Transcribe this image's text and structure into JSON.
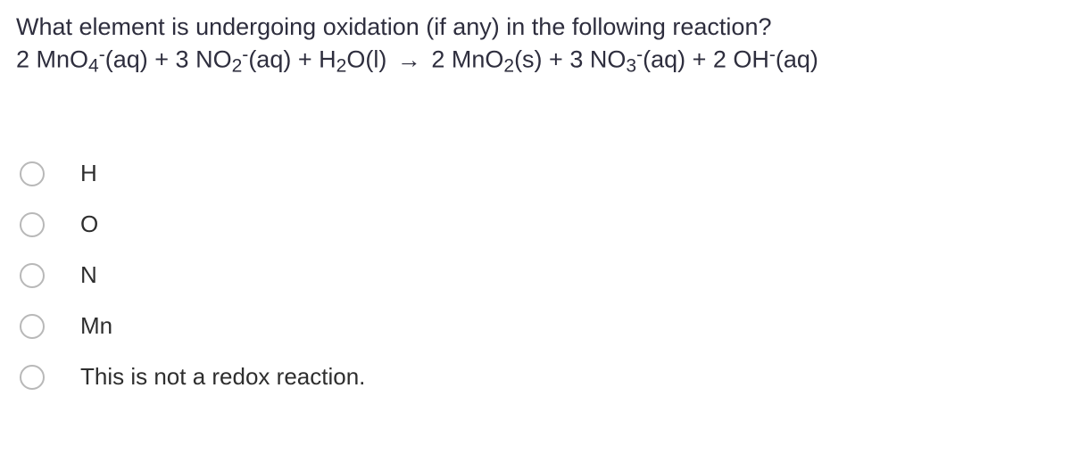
{
  "question": {
    "line1": "What element is undergoing oxidation (if any) in the following reaction?",
    "eq_parts": {
      "p1": "2 MnO",
      "s1": "4",
      "sup1": "-",
      "p2": "(aq) + 3 NO",
      "s2": "2",
      "sup2": "-",
      "p3": "(aq) + H",
      "s3": "2",
      "p4": "O(l) ",
      "arrow": "→",
      "p5": " 2 MnO",
      "s5": "2",
      "p6": "(s) + 3 NO",
      "s6": "3",
      "sup6": "-",
      "p7": "(aq) + 2 OH",
      "sup7": "-",
      "p8": "(aq)"
    }
  },
  "options": [
    {
      "label": "H"
    },
    {
      "label": "O"
    },
    {
      "label": "N"
    },
    {
      "label": "Mn"
    },
    {
      "label": "This is not a redox reaction."
    }
  ],
  "colors": {
    "text": "#2e2e3e",
    "option_text": "#2e2e2e",
    "radio_border": "#b8b8b8",
    "background": "#ffffff"
  },
  "typography": {
    "question_fontsize": 27,
    "option_fontsize": 26
  }
}
